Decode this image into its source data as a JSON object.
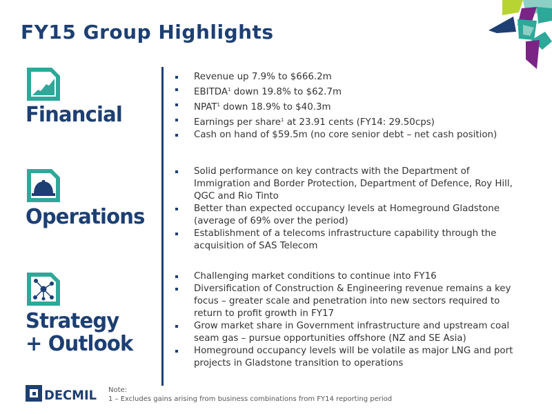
{
  "slide": {
    "title": "FY15 Group Highlights"
  },
  "colors": {
    "navy": "#1d3f73",
    "teal": "#2ea898",
    "lime": "#b8d432",
    "purple": "#7a2585",
    "light_teal": "#8ccfc4"
  },
  "sections": {
    "financial": {
      "label": "Financial",
      "icon": "growth-chart-icon",
      "bullets": [
        {
          "a": "Revenue up 7.9% to $666.2m"
        },
        {
          "a": "EBITDA",
          "sup": "1",
          "b": " down 19.8% to $62.7m"
        },
        {
          "a": "NPAT",
          "sup": "1",
          "b": " down 18.9% to $40.3m"
        },
        {
          "a": "Earnings per share",
          "sup": "1",
          "b": " at 23.91 cents (FY14: 29.50cps)"
        },
        {
          "a": "Cash on hand of $59.5m (no core senior debt – net cash position)"
        }
      ]
    },
    "operations": {
      "label": "Operations",
      "icon": "hard-hat-icon",
      "bullets": [
        "Solid performance on key contracts with the Department of Immigration and Border Protection, Department of Defence, Roy Hill, QGC and Rio Tinto",
        "Better than expected occupancy levels at Homeground Gladstone (average of 69% over the period)",
        "Establishment of a telecoms infrastructure capability through the acquisition of SAS Telecom"
      ]
    },
    "strategy": {
      "label_line1": "Strategy",
      "label_line2": "+ Outlook",
      "icon": "network-icon",
      "bullets": [
        "Challenging market conditions to continue into FY16",
        "Diversification of Construction & Engineering revenue remains a key focus – greater scale and penetration into new sectors required to return to profit growth in FY17",
        "Grow market share in Government infrastructure and upstream coal seam gas – pursue opportunities offshore (NZ and SE Asia)",
        "Homeground occupancy levels will be volatile as major LNG and port projects in Gladstone transition to operations"
      ]
    }
  },
  "footer": {
    "logo_text": "DECMIL",
    "note_label": "Note:",
    "note_text": "1 – Excludes gains arising from business combinations from FY14 reporting period"
  }
}
